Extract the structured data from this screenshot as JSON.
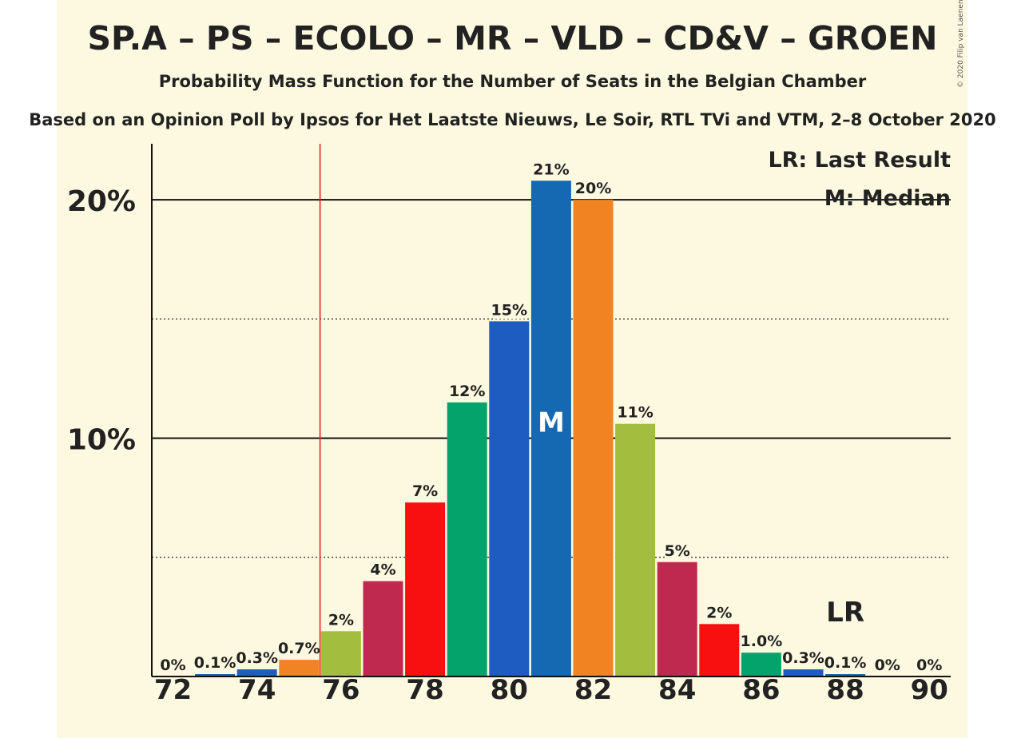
{
  "title": "SP.A – PS – ECOLO – MR – VLD – CD&V – GROEN",
  "subtitle": "Probability Mass Function for the Number of Seats in the Belgian Chamber",
  "source": "Based on an Opinion Poll by Ipsos for Het Laatste Nieuws, Le Soir, RTL TVi and VTM, 2–8 October 2020",
  "copyright": "© 2020 Filip van Laenen",
  "legend": {
    "lr": "LR: Last Result",
    "m": "M: Median"
  },
  "markers": {
    "median_label": "M",
    "median_seats": 81,
    "last_result_label": "LR",
    "last_result_seats": 75.5
  },
  "colors": {
    "background": "#fdf9e0",
    "last_result_line": "#e8211e",
    "parties": [
      "#1f5fba",
      "#f28322",
      "#a3be3f",
      "#c0294f",
      "#f7100f",
      "#04a36b",
      "#1e5cc2",
      "#1568b2"
    ]
  },
  "chart_data": {
    "type": "bar",
    "xlabel": "",
    "ylabel": "",
    "ylim": [
      0,
      0.2235
    ],
    "yticks": [
      0.1,
      0.2
    ],
    "ytick_labels": [
      "10%",
      "20%"
    ],
    "minor_gridlines": [
      0.05,
      0.15
    ],
    "xticks": [
      72,
      74,
      76,
      78,
      80,
      82,
      84,
      86,
      88,
      90
    ],
    "x": [
      72,
      73,
      74,
      75,
      76,
      77,
      78,
      79,
      80,
      81,
      82,
      83,
      84,
      85,
      86,
      87,
      88,
      89,
      90
    ],
    "values": [
      0,
      0.001,
      0.003,
      0.007,
      0.019,
      0.04,
      0.073,
      0.115,
      0.149,
      0.208,
      0.2,
      0.106,
      0.048,
      0.022,
      0.01,
      0.003,
      0.001,
      0,
      0
    ],
    "labels": [
      "0%",
      "0.1%",
      "0.3%",
      "0.7%",
      "2%",
      "4%",
      "7%",
      "12%",
      "15%",
      "21%",
      "20%",
      "11%",
      "5%",
      "2%",
      "1.0%",
      "0.3%",
      "0.1%",
      "0%",
      "0%"
    ],
    "bar_colors": [
      "#1f5fba",
      "#1f5fba",
      "#1f5fba",
      "#f28322",
      "#a3be3f",
      "#c0294f",
      "#f7100f",
      "#04a36b",
      "#1e5cc2",
      "#1568b2",
      "#f28322",
      "#a3be3f",
      "#c0294f",
      "#f7100f",
      "#04a36b",
      "#1e5cc2",
      "#1568b2",
      "#f28322",
      "#a3be3f"
    ],
    "grid": true
  }
}
